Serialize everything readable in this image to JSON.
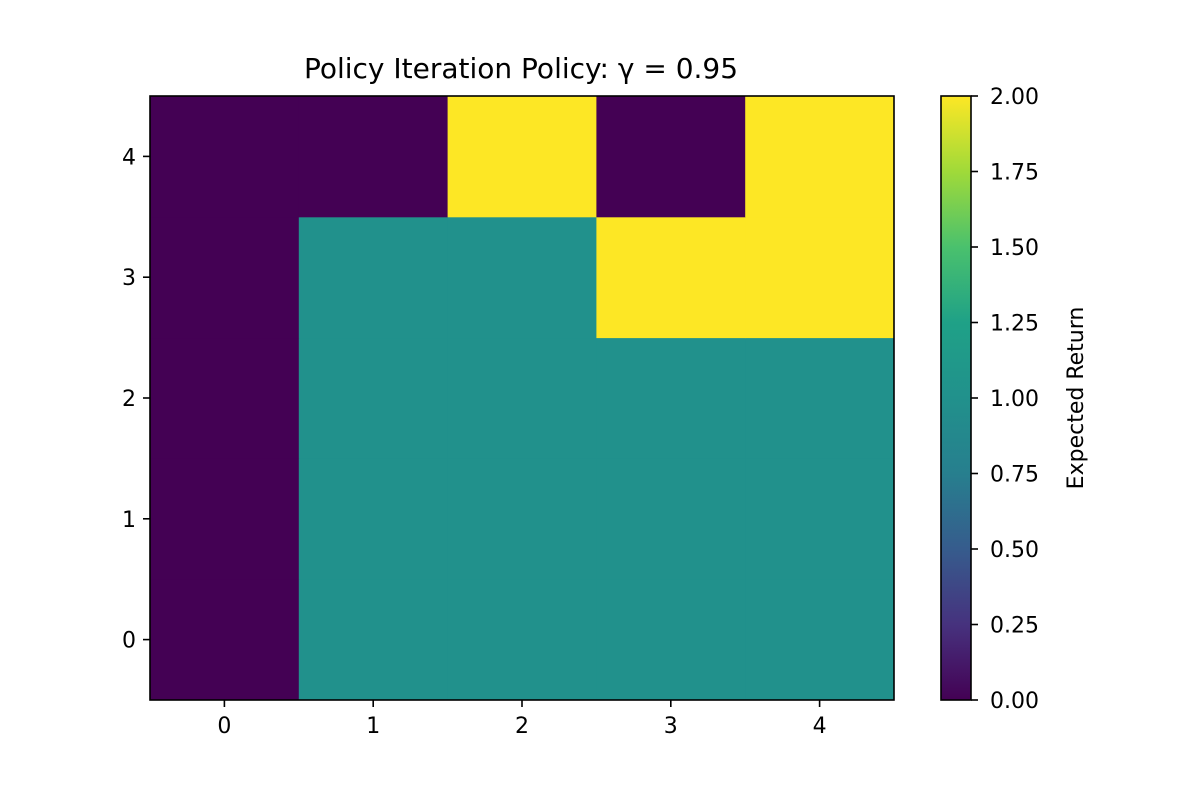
{
  "chart_data": {
    "type": "heatmap",
    "title": "Policy Iteration Policy: γ = 0.95",
    "x_ticks": [
      "0",
      "1",
      "2",
      "3",
      "4"
    ],
    "y_ticks": [
      "0",
      "1",
      "2",
      "3",
      "4"
    ],
    "grid": false,
    "z": [
      [
        0,
        1,
        1,
        1,
        1
      ],
      [
        0,
        1,
        1,
        1,
        1
      ],
      [
        0,
        1,
        1,
        1,
        1
      ],
      [
        0,
        1,
        1,
        2,
        2
      ],
      [
        0,
        0,
        2,
        0,
        2
      ]
    ],
    "z_range": [
      0,
      2
    ],
    "colormap": "viridis",
    "colorbar": {
      "label": "Expected Return",
      "ticks": [
        "0.00",
        "0.25",
        "0.50",
        "0.75",
        "1.00",
        "1.25",
        "1.50",
        "1.75",
        "2.00"
      ],
      "placement": "right"
    },
    "colors": {
      "low": "#440154",
      "mid": "#21918c",
      "high": "#fde725"
    }
  }
}
